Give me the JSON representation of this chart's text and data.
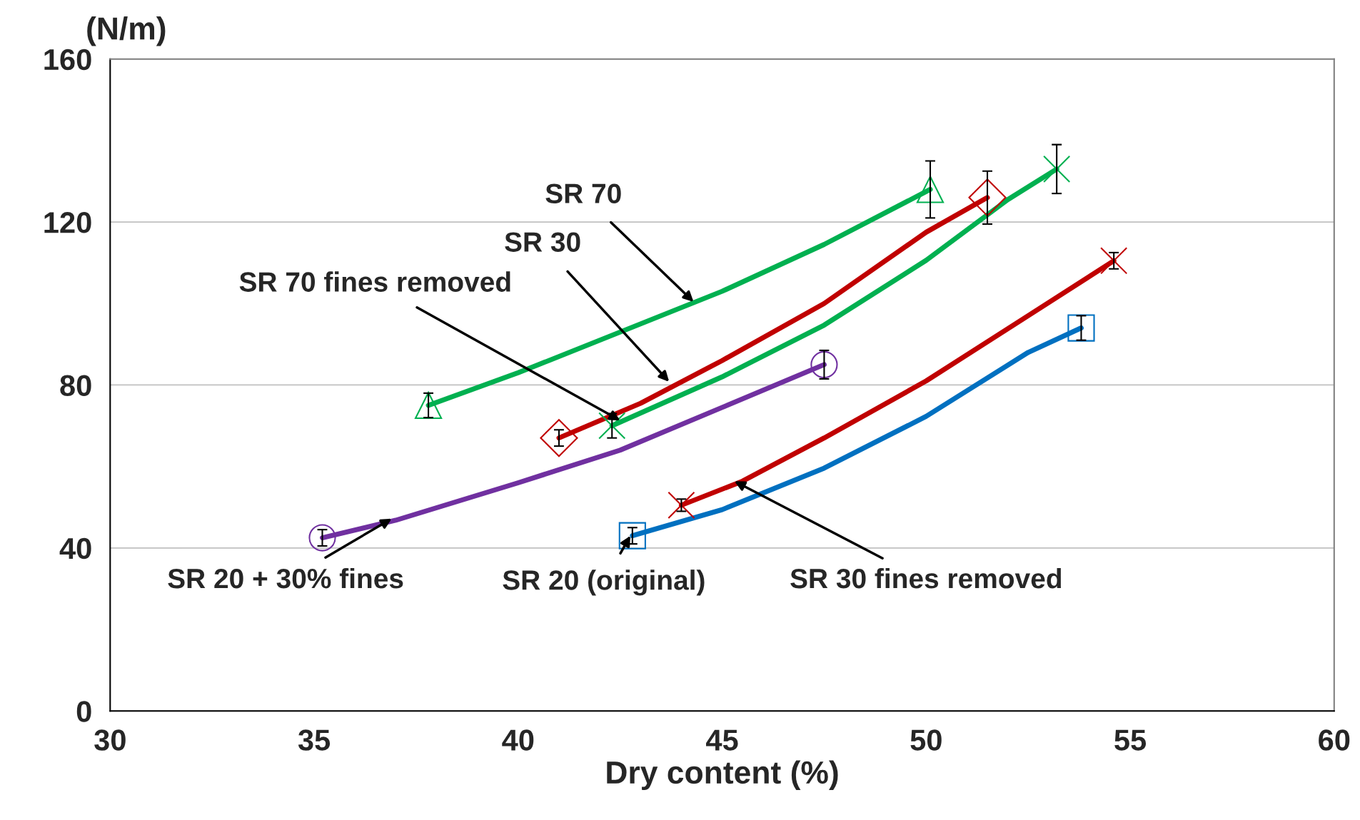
{
  "chart_data": {
    "type": "line",
    "xlabel": "Dry content (%)",
    "ylabel": "(N/m)",
    "xlim": [
      30,
      60
    ],
    "xticks": [
      30,
      35,
      40,
      45,
      50,
      55,
      60
    ],
    "ylim": [
      0,
      160
    ],
    "yticks": [
      0,
      40,
      80,
      120,
      160
    ],
    "grid": "y",
    "legend": false,
    "series": [
      {
        "color": "#00b050",
        "x": [
          37.8,
          40,
          45,
          47.5,
          50.1
        ],
        "values": [
          75,
          83,
          103,
          114.5,
          128
        ]
      },
      {
        "color": "#c00000",
        "x": [
          41.0,
          43,
          45,
          47.5,
          50,
          51.5
        ],
        "values": [
          67,
          75.5,
          86,
          100,
          117.5,
          126
        ]
      },
      {
        "color": "#00b050",
        "x": [
          42.3,
          45,
          47.5,
          50,
          52,
          53.2
        ],
        "values": [
          70,
          82,
          94.7,
          110.6,
          125.5,
          133
        ]
      },
      {
        "color": "#7030a0",
        "x": [
          35.2,
          37,
          40,
          42.5,
          45,
          47.5
        ],
        "values": [
          42.5,
          46.8,
          56,
          64,
          74.5,
          85
        ]
      },
      {
        "color": "#c00000",
        "x": [
          44.0,
          45.5,
          47.5,
          50,
          52.5,
          54.6
        ],
        "values": [
          50.5,
          56.4,
          67,
          81,
          97,
          110.5
        ]
      },
      {
        "color": "#0070c0",
        "x": [
          42.8,
          45,
          47.5,
          50,
          52.5,
          53.8
        ],
        "values": [
          43,
          49.4,
          59.6,
          72.3,
          88,
          94
        ]
      },
      {
        "type": "scatter",
        "color": "#00b050",
        "marker": "triangle",
        "x": [
          37.8,
          50.1
        ],
        "values": [
          75,
          128
        ],
        "errors": [
          3,
          7
        ]
      },
      {
        "type": "scatter",
        "color": "#c00000",
        "marker": "diamond",
        "x": [
          41.0,
          51.5
        ],
        "values": [
          67,
          126
        ],
        "errors": [
          2,
          6.5
        ]
      },
      {
        "type": "scatter",
        "color": "#00b050",
        "marker": "cross",
        "x": [
          42.3,
          53.2
        ],
        "values": [
          70,
          133
        ],
        "errors": [
          3,
          6
        ]
      },
      {
        "type": "scatter",
        "color": "#7030a0",
        "marker": "circle",
        "x": [
          35.2,
          47.5
        ],
        "values": [
          42.5,
          85
        ],
        "errors": [
          2,
          3.5
        ]
      },
      {
        "type": "scatter",
        "color": "#c00000",
        "marker": "cross",
        "x": [
          44.0,
          54.6
        ],
        "values": [
          50.5,
          110.5
        ],
        "errors": [
          1.5,
          2
        ]
      },
      {
        "type": "scatter",
        "color": "#0070c0",
        "marker": "square",
        "x": [
          42.8,
          53.8
        ],
        "values": [
          43,
          94
        ],
        "errors": [
          2,
          3
        ]
      }
    ],
    "annotations": [
      {
        "text": "SR 70",
        "x": 44.3,
        "y": 100.4
      },
      {
        "text": "SR 30",
        "x": 43.7,
        "y": 80.8
      },
      {
        "text": "SR 70 fines removed",
        "x": 42.5,
        "y": 71.3
      },
      {
        "text": "SR 20 + 30% fines",
        "x": 36.9,
        "y": 47.2
      },
      {
        "text": "SR 20 (original)",
        "x": 42.75,
        "y": 43
      },
      {
        "text": "SR 30 fines removed",
        "x": 45.3,
        "y": 56.4
      }
    ]
  }
}
